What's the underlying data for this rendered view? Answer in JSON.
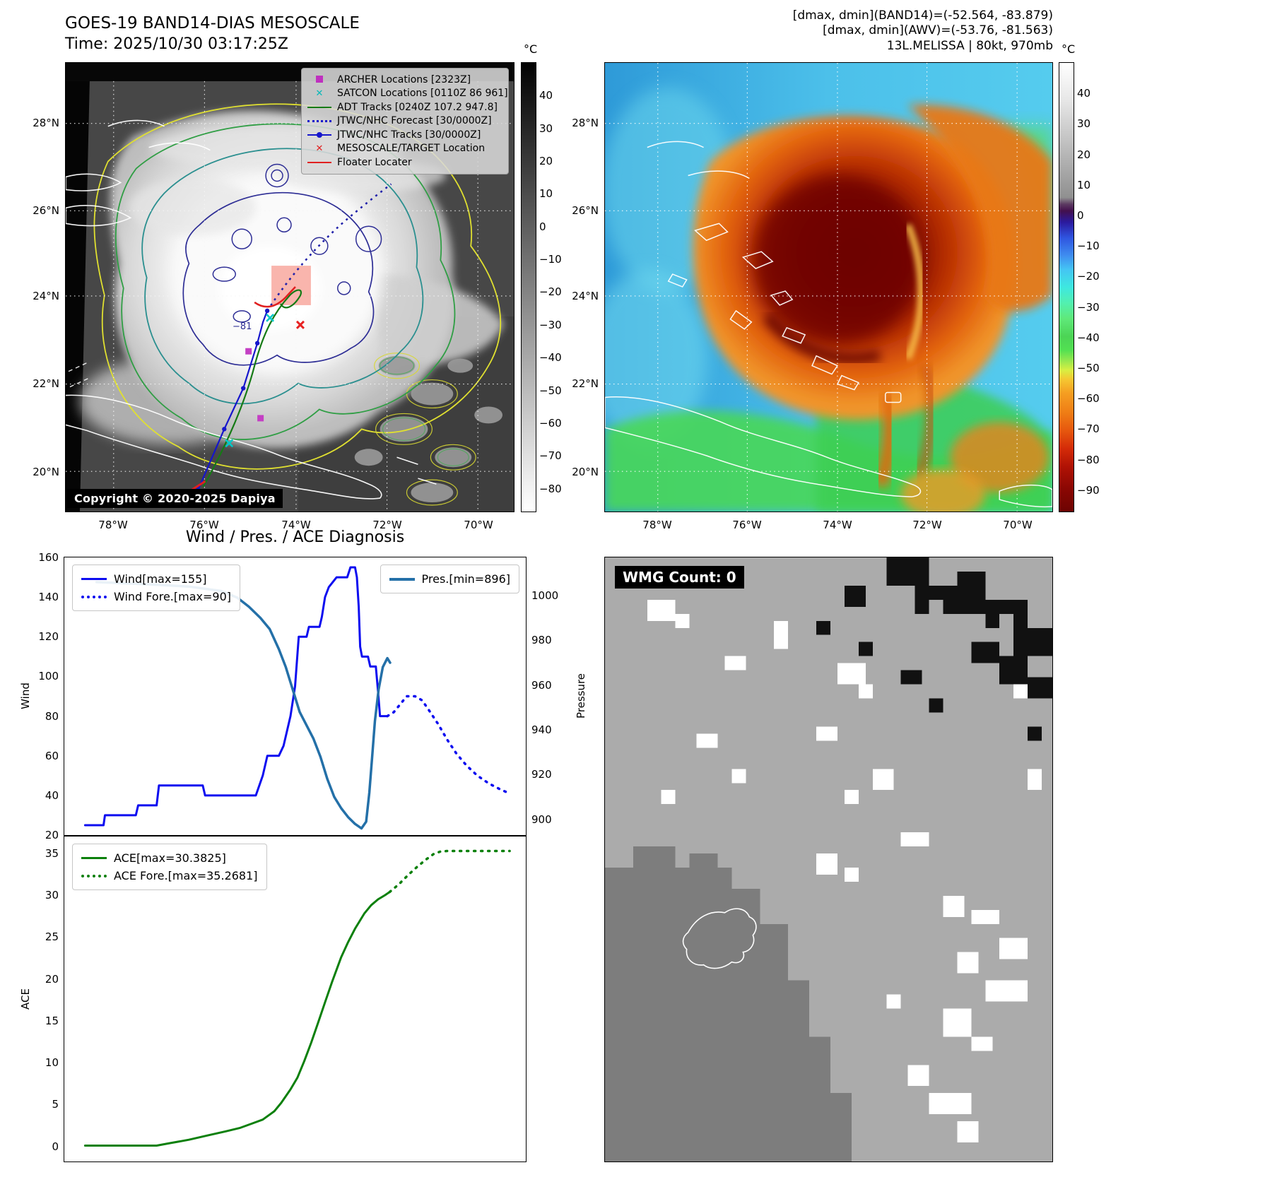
{
  "band14": {
    "title": "GOES-19 BAND14-DIAS MESOSCALE",
    "subtitle": "Time: 2025/10/30 03:17:25Z",
    "copyright": "Copyright © 2020-2025 Dapiya",
    "contour_label": "−81",
    "legend": [
      "ARCHER Locations [2323Z]",
      "SATCON Locations [0110Z 86 961]",
      "ADT Tracks [0240Z 107.2 947.8]",
      "JTWC/NHC Forecast [30/0000Z]",
      "JTWC/NHC Tracks [30/0000Z]",
      "MESOSCALE/TARGET Location",
      "Floater Locater"
    ],
    "colorbar": {
      "unit": "°C",
      "vmax": 50,
      "vmin": -87,
      "ticks": [
        "40",
        "30",
        "20",
        "10",
        "0",
        "−10",
        "−20",
        "−30",
        "−40",
        "−50",
        "−60",
        "−70",
        "−80"
      ]
    }
  },
  "awv": {
    "header": [
      "[dmax, dmin](BAND14)=(-52.564, -83.879)",
      "[dmax, dmin](AWV)=(-53.76, -81.563)",
      "13L.MELISSA | 80kt, 970mb"
    ],
    "colorbar": {
      "unit": "°C",
      "vmax": 50,
      "vmin": -97,
      "ticks": [
        "40",
        "30",
        "20",
        "10",
        "0",
        "−10",
        "−20",
        "−30",
        "−40",
        "−50",
        "−60",
        "−70",
        "−80",
        "−90"
      ]
    }
  },
  "geo": {
    "lat": [
      "28°N",
      "26°N",
      "24°N",
      "22°N",
      "20°N"
    ],
    "lon": [
      "78°W",
      "76°W",
      "74°W",
      "72°W",
      "70°W"
    ]
  },
  "diagnosis_title": "Wind / Pres. / ACE Diagnosis",
  "wmg": {
    "label": "WMG Count: 0"
  },
  "chart_data": {
    "type": "line",
    "title": "Wind / Pres. / ACE Diagnosis",
    "charts": {
      "wind_pressure": {
        "y": {
          "label": "Wind",
          "min": 20,
          "max": 160,
          "ticks": [
            160,
            140,
            120,
            100,
            80,
            60,
            40,
            20
          ]
        },
        "y2": {
          "label": "Pressure",
          "min": 893,
          "max": 1017,
          "ticks": [
            1000,
            980,
            960,
            940,
            920,
            900
          ]
        },
        "series": [
          {
            "name": "Wind[max=155]",
            "color": "#0d0df0",
            "width": 3,
            "axis": "y",
            "points": [
              [
                0.045,
                25
              ],
              [
                0.085,
                25
              ],
              [
                0.088,
                30
              ],
              [
                0.155,
                30
              ],
              [
                0.16,
                35
              ],
              [
                0.2,
                35
              ],
              [
                0.205,
                45
              ],
              [
                0.3,
                45
              ],
              [
                0.305,
                40
              ],
              [
                0.415,
                40
              ],
              [
                0.43,
                50
              ],
              [
                0.44,
                60
              ],
              [
                0.465,
                60
              ],
              [
                0.475,
                65
              ],
              [
                0.49,
                80
              ],
              [
                0.5,
                95
              ],
              [
                0.508,
                120
              ],
              [
                0.525,
                120
              ],
              [
                0.53,
                125
              ],
              [
                0.553,
                125
              ],
              [
                0.558,
                130
              ],
              [
                0.565,
                140
              ],
              [
                0.573,
                145
              ],
              [
                0.59,
                150
              ],
              [
                0.613,
                150
              ],
              [
                0.62,
                155
              ],
              [
                0.63,
                155
              ],
              [
                0.634,
                150
              ],
              [
                0.638,
                135
              ],
              [
                0.641,
                115
              ],
              [
                0.645,
                110
              ],
              [
                0.658,
                110
              ],
              [
                0.663,
                105
              ],
              [
                0.675,
                105
              ],
              [
                0.68,
                92
              ],
              [
                0.684,
                80
              ],
              [
                0.7,
                80
              ]
            ]
          },
          {
            "name": "Wind Fore.[max=90]",
            "color": "#0d0df0",
            "width": 3.5,
            "dash": "2 8",
            "axis": "y",
            "points": [
              [
                0.7,
                80
              ],
              [
                0.714,
                82
              ],
              [
                0.728,
                86
              ],
              [
                0.742,
                90
              ],
              [
                0.76,
                90
              ],
              [
                0.775,
                88
              ],
              [
                0.79,
                83
              ],
              [
                0.81,
                76
              ],
              [
                0.83,
                68
              ],
              [
                0.85,
                61
              ],
              [
                0.872,
                55
              ],
              [
                0.895,
                50
              ],
              [
                0.92,
                46
              ],
              [
                0.945,
                43
              ],
              [
                0.965,
                41
              ]
            ]
          },
          {
            "name": "Pres.[min=896]",
            "color": "#2470a8",
            "width": 3.5,
            "axis": "y2",
            "points": [
              [
                0.07,
                1006
              ],
              [
                0.18,
                1005
              ],
              [
                0.27,
                1004
              ],
              [
                0.34,
                1002
              ],
              [
                0.375,
                999
              ],
              [
                0.4,
                995
              ],
              [
                0.425,
                990
              ],
              [
                0.445,
                985
              ],
              [
                0.465,
                976
              ],
              [
                0.48,
                968
              ],
              [
                0.495,
                958
              ],
              [
                0.51,
                948
              ],
              [
                0.525,
                942
              ],
              [
                0.54,
                936
              ],
              [
                0.555,
                928
              ],
              [
                0.57,
                918
              ],
              [
                0.585,
                910
              ],
              [
                0.6,
                905
              ],
              [
                0.615,
                901
              ],
              [
                0.63,
                898
              ],
              [
                0.644,
                896
              ],
              [
                0.654,
                899
              ],
              [
                0.661,
                912
              ],
              [
                0.667,
                928
              ],
              [
                0.673,
                944
              ],
              [
                0.681,
                958
              ],
              [
                0.69,
                968
              ],
              [
                0.7,
                972
              ],
              [
                0.706,
                970
              ]
            ]
          }
        ]
      },
      "ace": {
        "y": {
          "label": "ACE",
          "min": -1.8,
          "max": 37,
          "ticks": [
            35,
            30,
            25,
            20,
            15,
            10,
            5,
            0
          ]
        },
        "series": [
          {
            "name": "ACE[max=30.3825]",
            "color": "#0c800c",
            "width": 3,
            "axis": "y",
            "points": [
              [
                0.045,
                0.1
              ],
              [
                0.2,
                0.1
              ],
              [
                0.23,
                0.4
              ],
              [
                0.27,
                0.8
              ],
              [
                0.31,
                1.3
              ],
              [
                0.35,
                1.8
              ],
              [
                0.38,
                2.2
              ],
              [
                0.41,
                2.8
              ],
              [
                0.43,
                3.2
              ],
              [
                0.455,
                4.2
              ],
              [
                0.47,
                5.2
              ],
              [
                0.49,
                6.8
              ],
              [
                0.505,
                8.2
              ],
              [
                0.52,
                10.2
              ],
              [
                0.535,
                12.4
              ],
              [
                0.55,
                14.8
              ],
              [
                0.565,
                17.2
              ],
              [
                0.58,
                19.6
              ],
              [
                0.6,
                22.6
              ],
              [
                0.615,
                24.4
              ],
              [
                0.63,
                26
              ],
              [
                0.65,
                27.8
              ],
              [
                0.665,
                28.8
              ],
              [
                0.68,
                29.5
              ],
              [
                0.695,
                30
              ],
              [
                0.705,
                30.38
              ]
            ]
          },
          {
            "name": "ACE Fore.[max=35.2681]",
            "color": "#0c800c",
            "width": 3.5,
            "dash": "2 8",
            "axis": "y",
            "points": [
              [
                0.705,
                30.38
              ],
              [
                0.725,
                31.3
              ],
              [
                0.745,
                32.4
              ],
              [
                0.765,
                33.4
              ],
              [
                0.785,
                34.3
              ],
              [
                0.8,
                34.9
              ],
              [
                0.815,
                35.2
              ],
              [
                0.83,
                35.27
              ],
              [
                0.9,
                35.27
              ],
              [
                0.965,
                35.27
              ]
            ]
          }
        ]
      }
    }
  }
}
